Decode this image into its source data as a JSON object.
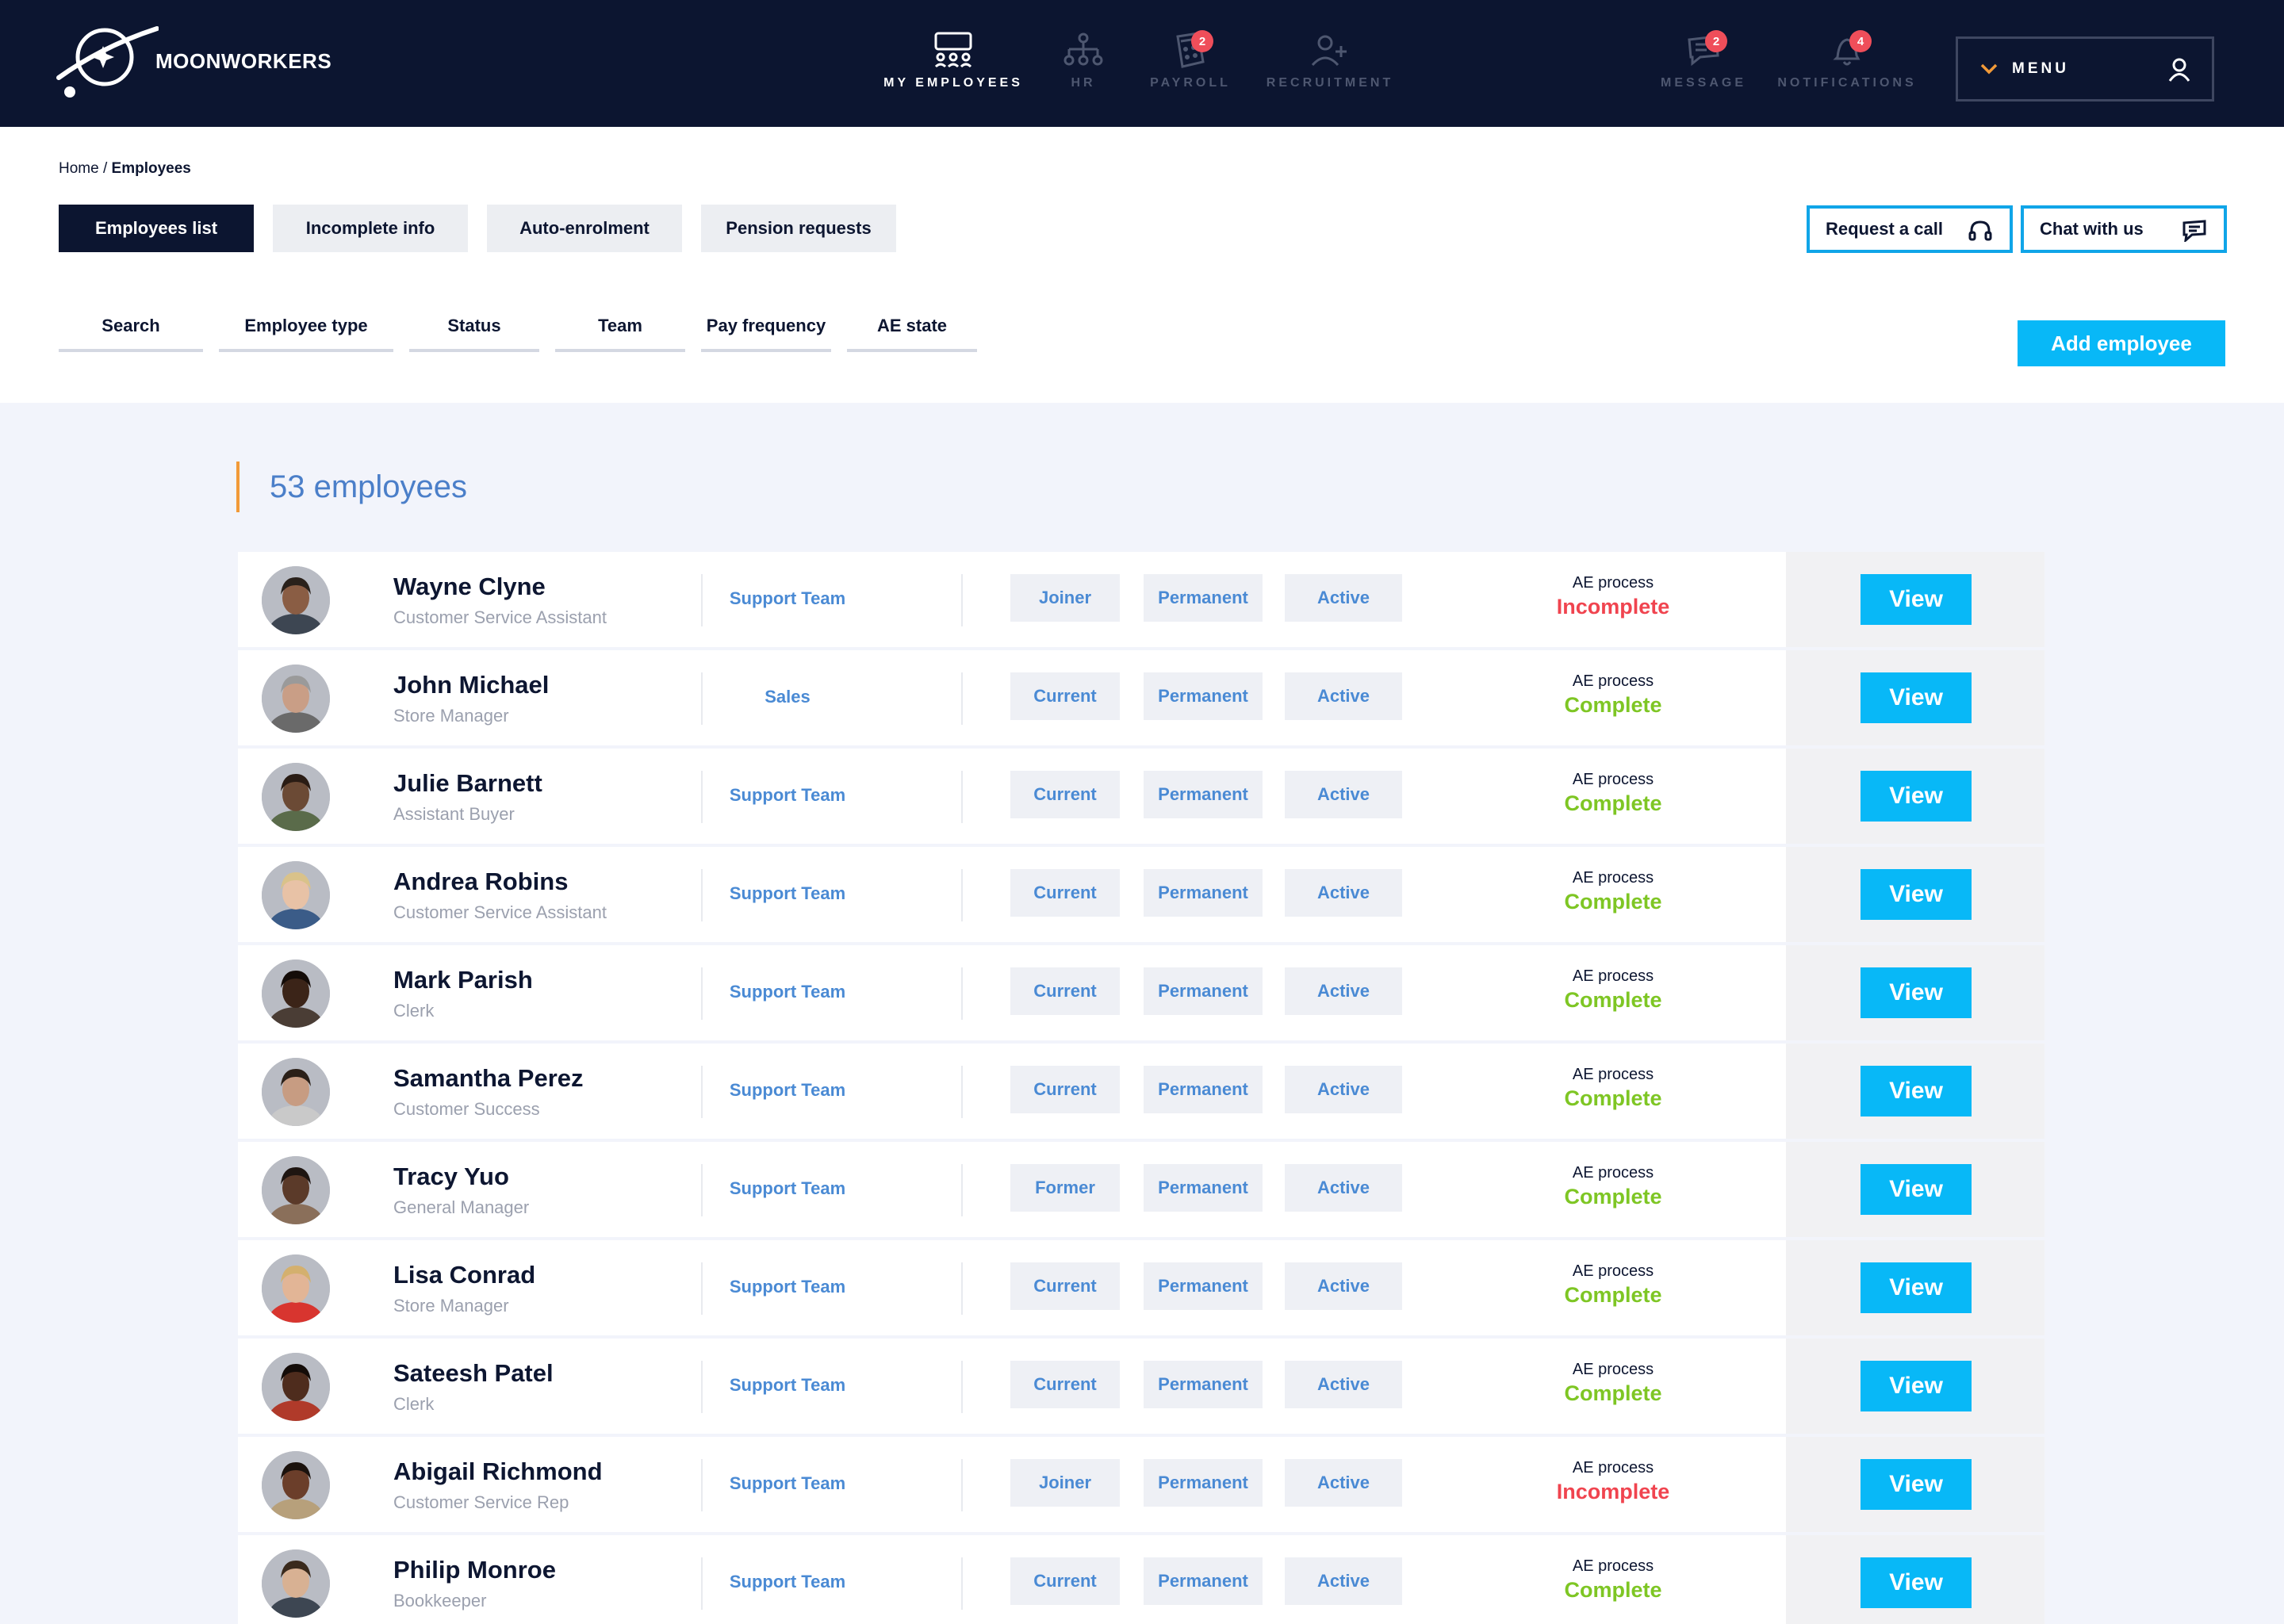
{
  "brand": {
    "name": "MOONWORKERS"
  },
  "nav": [
    {
      "label": "MY EMPLOYEES",
      "icon": "group-icon",
      "active": true,
      "badge": ""
    },
    {
      "label": "HR",
      "icon": "org-chart-icon",
      "active": false,
      "badge": ""
    },
    {
      "label": "PAYROLL",
      "icon": "calculator-icon",
      "active": false,
      "badge": "2"
    },
    {
      "label": "RECRUITMENT",
      "icon": "add-user-icon",
      "active": false,
      "badge": ""
    },
    {
      "label": "MESSAGE",
      "icon": "message-icon",
      "active": false,
      "badge": "2"
    },
    {
      "label": "NOTIFICATIONS",
      "icon": "bell-icon",
      "active": false,
      "badge": "4"
    }
  ],
  "menu": {
    "label": "MENU"
  },
  "breadcrumb": {
    "home": "Home",
    "sep": " / ",
    "current": "Employees"
  },
  "tabs": [
    "Employees list",
    "Incomplete info",
    "Auto-enrolment",
    "Pension requests"
  ],
  "actions": {
    "request_call": "Request a call",
    "chat": "Chat with us",
    "add_employee": "Add employee"
  },
  "filters": [
    "Search",
    "Employee type",
    "Status",
    "Team",
    "Pay frequency",
    "AE state"
  ],
  "count_label": "53 employees",
  "ae_label": "AE process",
  "view_label": "View",
  "colors": {
    "navy": "#0c1530",
    "accent": "#08b8f7",
    "complete": "#7ec624",
    "incomplete": "#f0444f",
    "count_bar": "#f29a38"
  },
  "employees": [
    {
      "name": "Wayne Clyne",
      "role": "Customer Service Assistant",
      "team": "Support Team",
      "type": "Joiner",
      "contract": "Permanent",
      "status": "Active",
      "ae": "Incomplete"
    },
    {
      "name": "John Michael",
      "role": "Store Manager",
      "team": "Sales",
      "type": "Current",
      "contract": "Permanent",
      "status": "Active",
      "ae": "Complete"
    },
    {
      "name": "Julie Barnett",
      "role": "Assistant Buyer",
      "team": "Support Team",
      "type": "Current",
      "contract": "Permanent",
      "status": "Active",
      "ae": "Complete"
    },
    {
      "name": "Andrea Robins",
      "role": "Customer Service Assistant",
      "team": "Support Team",
      "type": "Current",
      "contract": "Permanent",
      "status": "Active",
      "ae": "Complete"
    },
    {
      "name": "Mark Parish",
      "role": "Clerk",
      "team": "Support Team",
      "type": "Current",
      "contract": "Permanent",
      "status": "Active",
      "ae": "Complete"
    },
    {
      "name": "Samantha Perez",
      "role": "Customer Success",
      "team": "Support Team",
      "type": "Current",
      "contract": "Permanent",
      "status": "Active",
      "ae": "Complete"
    },
    {
      "name": "Tracy Yuo",
      "role": "General Manager",
      "team": "Support Team",
      "type": "Former",
      "contract": "Permanent",
      "status": "Active",
      "ae": "Complete"
    },
    {
      "name": "Lisa Conrad",
      "role": "Store Manager",
      "team": "Support Team",
      "type": "Current",
      "contract": "Permanent",
      "status": "Active",
      "ae": "Complete"
    },
    {
      "name": "Sateesh Patel",
      "role": "Clerk",
      "team": "Support Team",
      "type": "Current",
      "contract": "Permanent",
      "status": "Active",
      "ae": "Complete"
    },
    {
      "name": "Abigail Richmond",
      "role": "Customer Service Rep",
      "team": "Support Team",
      "type": "Joiner",
      "contract": "Permanent",
      "status": "Active",
      "ae": "Incomplete"
    },
    {
      "name": "Philip Monroe",
      "role": "Bookkeeper",
      "team": "Support Team",
      "type": "Current",
      "contract": "Permanent",
      "status": "Active",
      "ae": "Complete"
    }
  ]
}
